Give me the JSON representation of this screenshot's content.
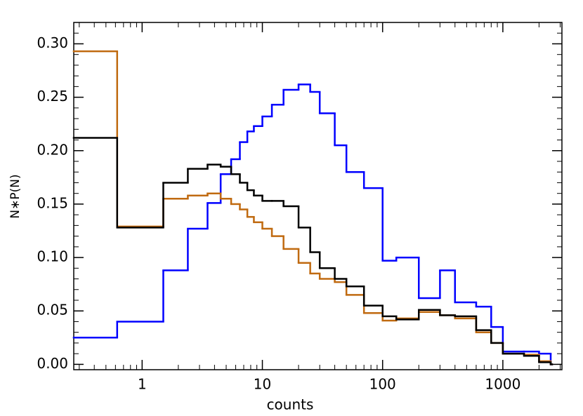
{
  "chart_data": {
    "type": "step",
    "xlabel": "counts",
    "ylabel": "N∗P(N)",
    "xscale": "log",
    "xlim": [
      0.27,
      3100
    ],
    "ylim": [
      -0.005,
      0.32
    ],
    "xticks": [
      1,
      10,
      100,
      1000
    ],
    "yticks": [
      {
        "value": 0,
        "label": "0.00"
      },
      {
        "value": 0.05,
        "label": "0.05"
      },
      {
        "value": 0.1,
        "label": "0.10"
      },
      {
        "value": 0.15,
        "label": "0.15"
      },
      {
        "value": 0.2,
        "label": "0.20"
      },
      {
        "value": 0.25,
        "label": "0.25"
      },
      {
        "value": 0.3,
        "label": "0.30"
      }
    ],
    "x": [
      0.27,
      0.62,
      1.5,
      2.4,
      3.5,
      4.5,
      5.5,
      6.5,
      7.5,
      8.5,
      10,
      12,
      15,
      20,
      25,
      30,
      40,
      50,
      70,
      100,
      130,
      200,
      300,
      400,
      600,
      800,
      1000,
      1500,
      2000,
      2500
    ],
    "series": [
      {
        "color": "#0000ff",
        "values": [
          0.025,
          0.04,
          0.088,
          0.127,
          0.151,
          0.178,
          0.192,
          0.208,
          0.218,
          0.223,
          0.232,
          0.243,
          0.257,
          0.262,
          0.255,
          0.235,
          0.205,
          0.18,
          0.165,
          0.097,
          0.1,
          0.062,
          0.088,
          0.058,
          0.054,
          0.035,
          0.012,
          0.012,
          0.01,
          0
        ]
      },
      {
        "color": "#c06a10",
        "values": [
          0.293,
          0.129,
          0.155,
          0.158,
          0.16,
          0.155,
          0.15,
          0.145,
          0.138,
          0.133,
          0.127,
          0.12,
          0.108,
          0.095,
          0.085,
          0.08,
          0.077,
          0.065,
          0.048,
          0.041,
          0.043,
          0.049,
          0.046,
          0.043,
          0.03,
          0.02,
          0.01,
          0.009,
          0.003,
          0
        ]
      },
      {
        "color": "#000000",
        "values": [
          0.212,
          0.128,
          0.17,
          0.183,
          0.187,
          0.185,
          0.178,
          0.17,
          0.163,
          0.158,
          0.153,
          0.153,
          0.148,
          0.128,
          0.105,
          0.09,
          0.08,
          0.073,
          0.055,
          0.045,
          0.042,
          0.051,
          0.046,
          0.045,
          0.032,
          0.02,
          0.01,
          0.008,
          0.002,
          0
        ]
      }
    ]
  }
}
